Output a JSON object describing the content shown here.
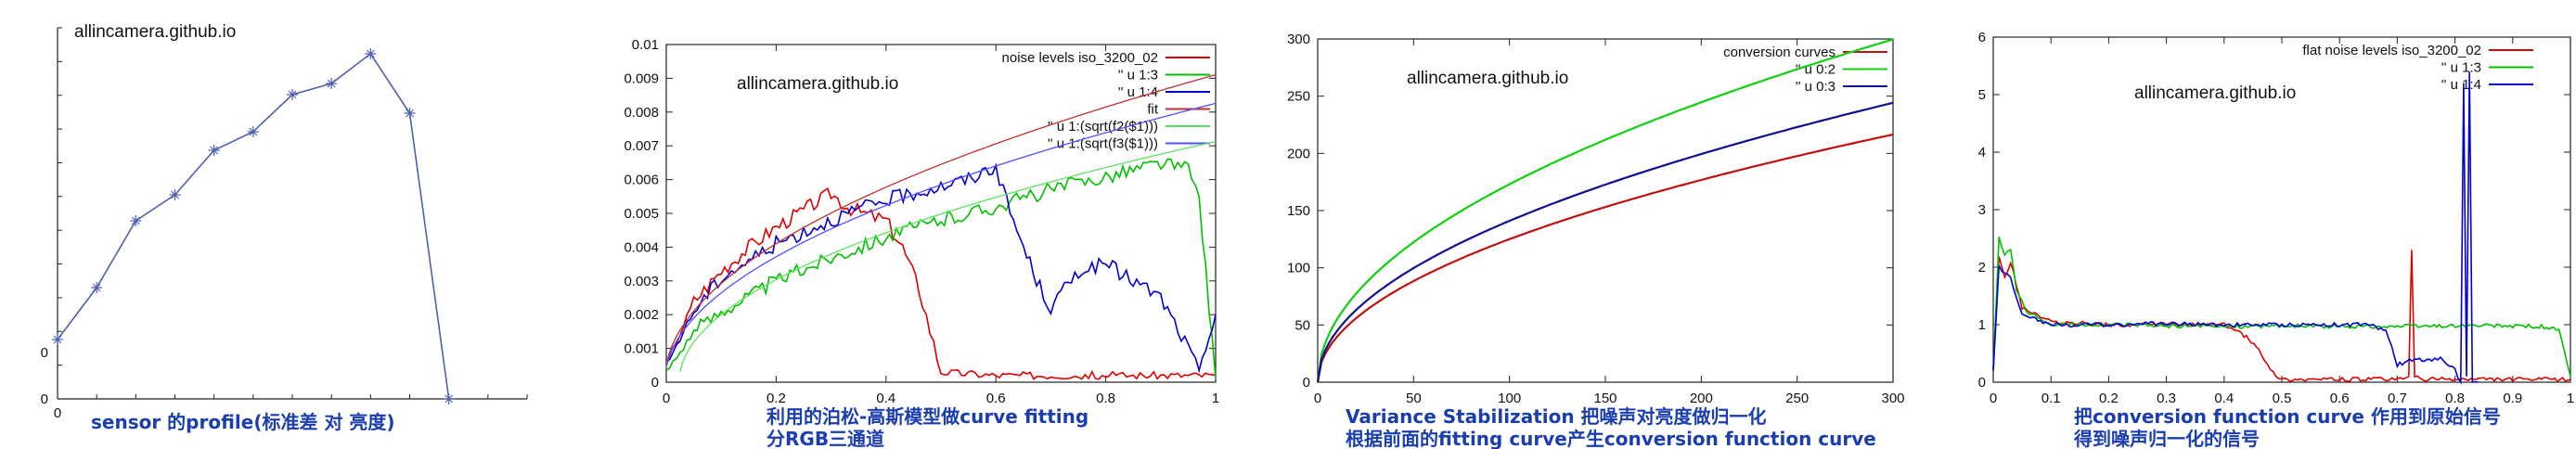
{
  "chart_data": [
    {
      "type": "line",
      "watermark": "allincamera.github.io",
      "caption": [
        "sensor 的profile(标准差 对 亮度)"
      ],
      "x": [
        0,
        1,
        2,
        3,
        4,
        5,
        6,
        7,
        8,
        9,
        10,
        11
      ],
      "xticks": [
        "0"
      ],
      "yticks": [
        "0",
        "0"
      ],
      "series": [
        {
          "color": "#5060b0",
          "marker": "cross",
          "values": [
            0.16,
            0.3,
            0.48,
            0.55,
            0.67,
            0.72,
            0.82,
            0.85,
            0.93,
            0.77,
            0.0,
            null
          ]
        }
      ],
      "ylim": [
        0,
        1.0
      ],
      "xlim": [
        0,
        12
      ]
    },
    {
      "type": "line",
      "watermark": "allincamera.github.io",
      "caption": [
        "利用的泊松-高斯模型做curve fitting",
        "分RGB三通道"
      ],
      "xlim": [
        0,
        1
      ],
      "ylim": [
        0,
        0.01
      ],
      "xticks": [
        "0",
        "0.2",
        "0.4",
        "0.6",
        "0.8",
        "1"
      ],
      "yticks": [
        "0",
        "0.001",
        "0.002",
        "0.003",
        "0.004",
        "0.005",
        "0.006",
        "0.007",
        "0.008",
        "0.009",
        "0.01"
      ],
      "legend": [
        {
          "label": "noise levels iso_3200_02",
          "color": "#e00000"
        },
        {
          "label": "'' u 1:3",
          "color": "#00c000"
        },
        {
          "label": "'' u 1:4",
          "color": "#0000d0"
        },
        {
          "label": "fit",
          "color": "#c03030"
        },
        {
          "label": "'' u 1:(sqrt(f2($1)))",
          "color": "#60e060"
        },
        {
          "label": "'' u 1:(sqrt(f3($1)))",
          "color": "#5050ff"
        }
      ],
      "series": [
        {
          "name": "noise levels iso_3200_02",
          "color": "#e00000",
          "x": [
            0.0,
            0.05,
            0.1,
            0.15,
            0.2,
            0.25,
            0.3,
            0.33,
            0.36,
            0.4,
            0.43,
            0.46,
            0.5,
            0.6,
            0.7,
            0.8,
            0.9,
            1.0
          ],
          "y": [
            0.0005,
            0.0024,
            0.0033,
            0.004,
            0.0046,
            0.0051,
            0.0056,
            0.0052,
            0.005,
            0.0048,
            0.004,
            0.0028,
            0.0003,
            0.0002,
            0.0002,
            0.0002,
            0.0002,
            0.0002
          ]
        },
        {
          "name": "'' u 1:3",
          "color": "#00c000",
          "x": [
            0.0,
            0.05,
            0.1,
            0.2,
            0.3,
            0.4,
            0.5,
            0.6,
            0.7,
            0.8,
            0.9,
            0.95,
            0.97,
            1.0
          ],
          "y": [
            0.0003,
            0.0015,
            0.0021,
            0.003,
            0.0037,
            0.0043,
            0.0048,
            0.0052,
            0.0057,
            0.0061,
            0.0065,
            0.0063,
            0.0055,
            0.0001
          ]
        },
        {
          "name": "'' u 1:4",
          "color": "#0000d0",
          "x": [
            0.0,
            0.05,
            0.1,
            0.2,
            0.3,
            0.4,
            0.5,
            0.55,
            0.6,
            0.62,
            0.65,
            0.68,
            0.7,
            0.75,
            0.8,
            0.85,
            0.9,
            0.95,
            0.97,
            1.0
          ],
          "y": [
            0.0005,
            0.0021,
            0.0031,
            0.0041,
            0.0048,
            0.0054,
            0.0058,
            0.006,
            0.0064,
            0.0053,
            0.004,
            0.0028,
            0.0022,
            0.0033,
            0.0035,
            0.003,
            0.0025,
            0.001,
            0.0003,
            0.002
          ]
        },
        {
          "name": "fit",
          "color": "#c03030",
          "fit": {
            "a": 8.26e-05,
            "b": 3e-07
          }
        },
        {
          "name": "'' u 1:(sqrt(f2($1)))",
          "color": "#60e060",
          "fit": {
            "a": 5.2e-05,
            "b": -1.2e-06
          }
        },
        {
          "name": "'' u 1:(sqrt(f3($1)))",
          "color": "#5050ff",
          "fit": {
            "a": 6.8e-05,
            "b": 2e-07
          }
        }
      ]
    },
    {
      "type": "line",
      "watermark": "allincamera.github.io",
      "caption": [
        "Variance Stabilization 把噪声对亮度做归一化",
        "根据前面的fitting curve产生conversion function curve"
      ],
      "xlim": [
        0,
        300
      ],
      "ylim": [
        0,
        300
      ],
      "xticks": [
        "0",
        "50",
        "100",
        "150",
        "200",
        "250",
        "300"
      ],
      "yticks": [
        "0",
        "50",
        "100",
        "150",
        "200",
        "250",
        "300"
      ],
      "legend": [
        {
          "label": "conversion curves",
          "color": "#c01010"
        },
        {
          "label": "'' u 0:2",
          "color": "#10d010"
        },
        {
          "label": "'' u 0:3",
          "color": "#101090"
        }
      ],
      "series": [
        {
          "name": "conversion curves",
          "color": "#c01010",
          "sqrt_k": 12.5
        },
        {
          "name": "'' u 0:2",
          "color": "#10d010",
          "sqrt_k": 17.3
        },
        {
          "name": "'' u 0:3",
          "color": "#101090",
          "sqrt_k": 14.1
        }
      ]
    },
    {
      "type": "line",
      "watermark": "allincamera.github.io",
      "caption": [
        "把conversion function curve 作用到原始信号",
        "得到噪声归一化的信号"
      ],
      "xlim": [
        0,
        1
      ],
      "ylim": [
        0,
        6
      ],
      "xticks": [
        "0",
        "0.1",
        "0.2",
        "0.3",
        "0.4",
        "0.5",
        "0.6",
        "0.7",
        "0.8",
        "0.9",
        "1"
      ],
      "yticks": [
        "0",
        "1",
        "2",
        "3",
        "4",
        "5",
        "6"
      ],
      "legend": [
        {
          "label": "flat noise levels iso_3200_02",
          "color": "#e00000"
        },
        {
          "label": "'' u 1:3",
          "color": "#00c000"
        },
        {
          "label": "'' u 1:4",
          "color": "#0000d0"
        }
      ],
      "series": [
        {
          "name": "flat noise levels iso_3200_02",
          "color": "#e00000",
          "x": [
            0.0,
            0.01,
            0.02,
            0.03,
            0.05,
            0.1,
            0.2,
            0.3,
            0.4,
            0.43,
            0.46,
            0.48,
            0.5,
            0.6,
            0.7,
            0.72,
            0.725,
            0.73,
            0.74,
            0.8,
            0.9,
            1.0
          ],
          "y": [
            0.2,
            2.2,
            1.8,
            2.1,
            1.3,
            1.05,
            1.0,
            1.0,
            1.0,
            0.85,
            0.6,
            0.2,
            0.05,
            0.05,
            0.05,
            0.1,
            2.3,
            0.1,
            0.05,
            0.05,
            0.05,
            0.05
          ]
        },
        {
          "name": "'' u 1:3",
          "color": "#00c000",
          "x": [
            0.0,
            0.01,
            0.02,
            0.03,
            0.04,
            0.06,
            0.1,
            0.2,
            0.3,
            0.4,
            0.5,
            0.6,
            0.7,
            0.8,
            0.9,
            0.95,
            0.98,
            1.0
          ],
          "y": [
            0.2,
            2.5,
            2.2,
            2.3,
            1.6,
            1.2,
            1.0,
            1.0,
            0.98,
            0.97,
            0.98,
            0.97,
            0.97,
            0.98,
            0.98,
            0.97,
            0.9,
            0.1
          ]
        },
        {
          "name": "'' u 1:4",
          "color": "#0000d0",
          "x": [
            0.0,
            0.01,
            0.02,
            0.03,
            0.05,
            0.1,
            0.2,
            0.3,
            0.4,
            0.5,
            0.6,
            0.65,
            0.68,
            0.7,
            0.73,
            0.76,
            0.78,
            0.8,
            0.81,
            0.815,
            0.82,
            0.825,
            0.83,
            0.84
          ],
          "y": [
            0.2,
            2.0,
            1.9,
            1.8,
            1.2,
            1.0,
            1.0,
            1.02,
            1.0,
            1.0,
            1.0,
            1.0,
            0.9,
            0.3,
            0.4,
            0.4,
            0.4,
            0.2,
            0.0,
            5.2,
            0.1,
            5.4,
            0.0,
            0.0
          ]
        }
      ]
    }
  ]
}
